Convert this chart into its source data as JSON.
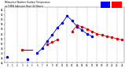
{
  "title": "Milwaukee Weather Outdoor Temperature vs THSW Index per Hour (24 Hours)",
  "bg_color": "#ffffff",
  "plot_bg_color": "#ffffff",
  "grid_color": "#aaaaaa",
  "temp_color": "#dd0000",
  "thsw_color": "#0000dd",
  "legend_blue_color": "#0000ff",
  "legend_red_color": "#ff0000",
  "temp_data": [
    [
      3,
      47.5
    ],
    [
      8,
      49.5
    ],
    [
      9,
      50.5
    ],
    [
      10,
      51.5
    ],
    [
      13,
      55.0
    ],
    [
      14,
      57.5
    ],
    [
      15,
      57.0
    ],
    [
      16,
      56.0
    ],
    [
      17,
      55.0
    ],
    [
      18,
      54.0
    ],
    [
      19,
      53.5
    ],
    [
      20,
      53.0
    ],
    [
      21,
      52.5
    ],
    [
      22,
      52.0
    ],
    [
      23,
      51.5
    ]
  ],
  "thsw_data": [
    [
      0,
      44.5
    ],
    [
      4,
      43.5
    ],
    [
      6,
      46.0
    ],
    [
      7,
      48.0
    ],
    [
      8,
      51.0
    ],
    [
      9,
      53.5
    ],
    [
      10,
      56.5
    ],
    [
      11,
      58.5
    ],
    [
      12,
      61.5
    ],
    [
      13,
      59.5
    ],
    [
      14,
      57.0
    ],
    [
      15,
      55.5
    ],
    [
      16,
      54.0
    ],
    [
      17,
      53.0
    ]
  ],
  "temp_line": [
    [
      8,
      9,
      10
    ],
    [
      49.5,
      50.5,
      51.5
    ]
  ],
  "thsw_line": [
    [
      8,
      9,
      10,
      11,
      12,
      13,
      14,
      15,
      16,
      17
    ],
    [
      51.0,
      53.5,
      56.5,
      58.5,
      61.5,
      59.5,
      57.0,
      55.5,
      54.0,
      53.0
    ]
  ],
  "ylim": [
    42,
    65
  ],
  "xlim": [
    -0.5,
    23.5
  ],
  "ytick_vals": [
    42,
    44,
    46,
    48,
    50,
    52,
    54,
    56,
    58,
    60,
    62,
    64
  ],
  "ytick_labels": [
    "42",
    "44",
    "46",
    "48",
    "50",
    "52",
    "54",
    "56",
    "58",
    "60",
    "62",
    "64"
  ],
  "xtick_vals": [
    0,
    1,
    2,
    3,
    4,
    5,
    6,
    7,
    8,
    9,
    10,
    11,
    12,
    13,
    14,
    15,
    16,
    17,
    18,
    19,
    20,
    21,
    22,
    23
  ],
  "xtick_labels": [
    "0",
    "1",
    "2",
    "3",
    "4",
    "5",
    "6",
    "7",
    "8",
    "9",
    "10",
    "11",
    "12",
    "13",
    "14",
    "15",
    "16",
    "17",
    "18",
    "19",
    "20",
    "21",
    "22",
    "23"
  ],
  "vgrid_positions": [
    2,
    4,
    6,
    8,
    10,
    12,
    14,
    16,
    18,
    20,
    22
  ],
  "marker_size": 3.0,
  "linewidth": 0.6
}
